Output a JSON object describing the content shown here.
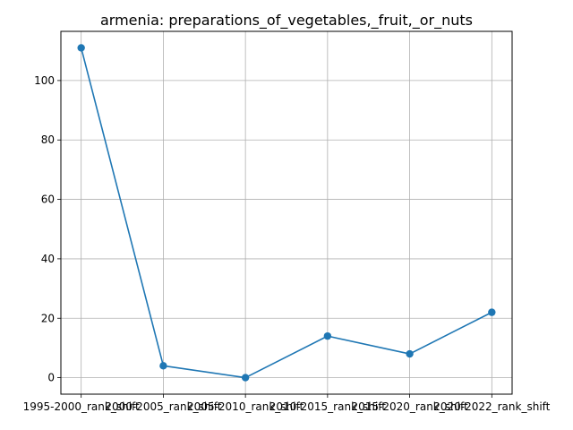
{
  "chart_data": {
    "type": "line",
    "title": "armenia: preparations_of_vegetables,_fruit,_or_nuts",
    "xlabel": "",
    "ylabel": "",
    "categories": [
      "1995-2000_rank_shift",
      "2000-2005_rank_shift",
      "2005-2010_rank_shift",
      "2010-2015_rank_shift",
      "2015-2020_rank_shift",
      "2020-2022_rank_shift"
    ],
    "series": [
      {
        "values": [
          111,
          4,
          0,
          14,
          8,
          22
        ]
      }
    ],
    "ylim": [
      -5.55,
      116.55
    ],
    "yticks": [
      0,
      20,
      40,
      60,
      80,
      100
    ],
    "grid": true,
    "marker": "circle",
    "colors": {
      "line": "#1f77b4",
      "grid": "#b0b0b0",
      "axis": "#000000"
    }
  }
}
